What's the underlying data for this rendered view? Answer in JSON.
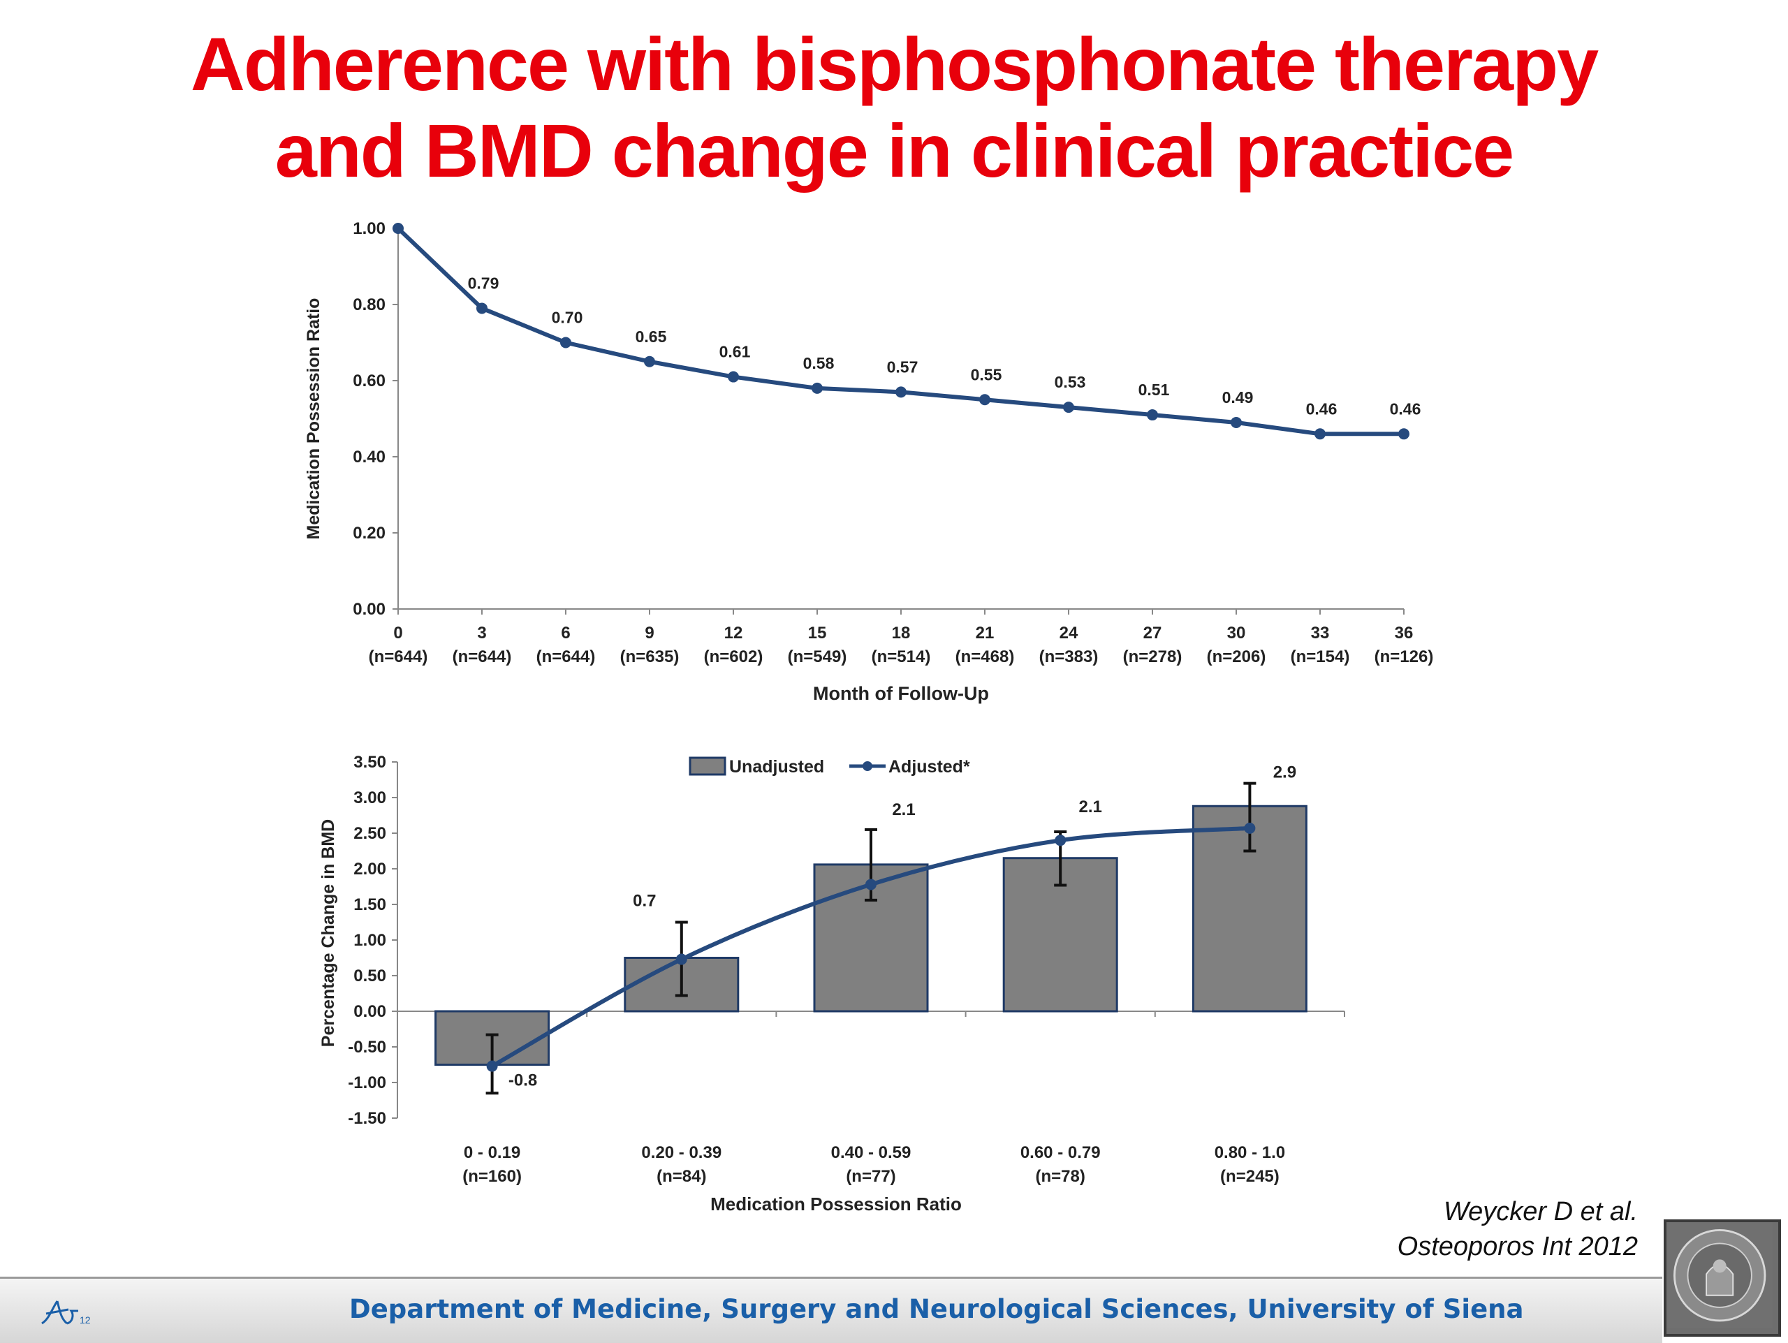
{
  "title": {
    "line1": "Adherence with bisphosphonate therapy",
    "line2": "and BMD change in clinical practice"
  },
  "citation": {
    "line1": "Weycker D et al.",
    "line2": "Osteoporos Int 2012"
  },
  "footer": {
    "text": "Department of Medicine, Surgery and Neurological Sciences, University of Siena",
    "logo_label": "12"
  },
  "colors": {
    "title": "#e8000b",
    "series_line": "#264a7e",
    "bar_fill": "#808080",
    "footer_text": "#1a5fa8"
  },
  "chart_data": [
    {
      "type": "line",
      "x": [
        "0",
        "3",
        "6",
        "9",
        "12",
        "15",
        "18",
        "21",
        "24",
        "27",
        "30",
        "33",
        "36"
      ],
      "x_sublabels": [
        "(n=644)",
        "(n=644)",
        "(n=644)",
        "(n=635)",
        "(n=602)",
        "(n=549)",
        "(n=514)",
        "(n=468)",
        "(n=383)",
        "(n=278)",
        "(n=206)",
        "(n=154)",
        "(n=126)"
      ],
      "values": [
        1.0,
        0.79,
        0.7,
        0.65,
        0.61,
        0.58,
        0.57,
        0.55,
        0.53,
        0.51,
        0.49,
        0.46,
        0.46
      ],
      "data_labels": [
        "",
        "0.79",
        "0.70",
        "0.65",
        "0.61",
        "0.58",
        "0.57",
        "0.55",
        "0.53",
        "0.51",
        "0.49",
        "0.46",
        "0.46"
      ],
      "xlabel": "Month of Follow-Up",
      "ylabel": "Medication Possession Ratio",
      "ylim": [
        0,
        1.0
      ],
      "yticks": [
        "0.00",
        "0.20",
        "0.40",
        "0.60",
        "0.80",
        "1.00"
      ],
      "grid": false
    },
    {
      "type": "bar",
      "categories": [
        "0 - 0.19",
        "0.20 - 0.39",
        "0.40 - 0.59",
        "0.60 - 0.79",
        "0.80 - 1.0"
      ],
      "category_sublabels": [
        "(n=160)",
        "(n=84)",
        "(n=77)",
        "(n=78)",
        "(n=245)"
      ],
      "series": [
        {
          "name": "Unadjusted",
          "kind": "bar",
          "values": [
            -0.75,
            0.75,
            2.06,
            2.15,
            2.88
          ]
        },
        {
          "name": "Adjusted*",
          "kind": "line",
          "values": [
            -0.77,
            0.73,
            1.78,
            2.4,
            2.57
          ],
          "error_low": [
            -1.15,
            0.22,
            1.56,
            1.77,
            2.25
          ],
          "error_high": [
            -0.33,
            1.25,
            2.55,
            2.52,
            3.2
          ]
        }
      ],
      "data_labels": [
        "-0.8",
        "0.7",
        "2.1",
        "2.1",
        "2.9"
      ],
      "xlabel": "Medication Possession Ratio",
      "ylabel": "Percentage Change in BMD",
      "ylim": [
        -1.5,
        3.5
      ],
      "yticks": [
        "-1.50",
        "-1.00",
        "-0.50",
        "0.00",
        "0.50",
        "1.00",
        "1.50",
        "2.00",
        "2.50",
        "3.00",
        "3.50"
      ],
      "legend": "top-center",
      "grid": false
    }
  ]
}
